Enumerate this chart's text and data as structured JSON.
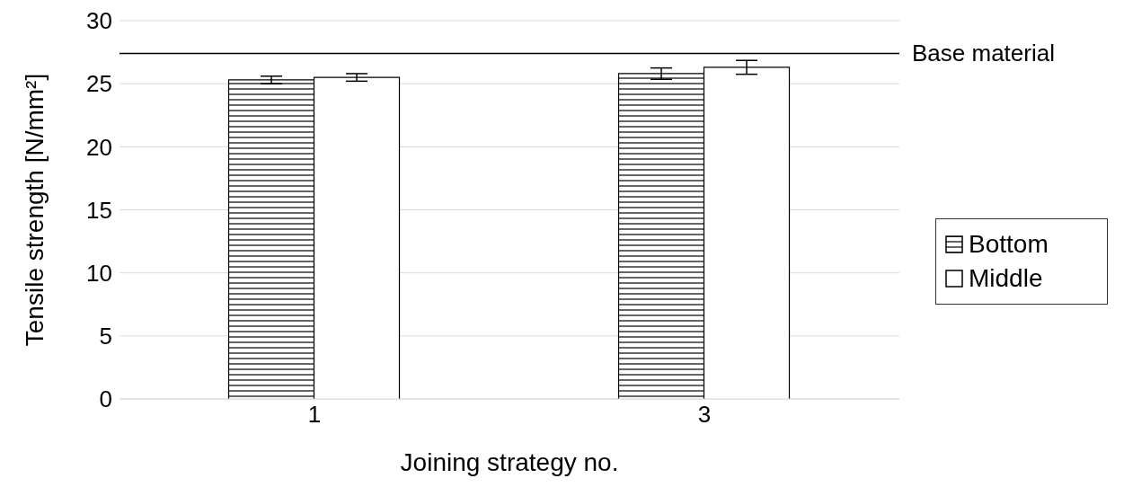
{
  "chart_data": {
    "type": "bar",
    "xlabel": "Joining strategy no.",
    "ylabel": "Tensile strength [N/mm²]",
    "categories": [
      "1",
      "3"
    ],
    "series": [
      {
        "name": "Bottom",
        "color": "#000000",
        "values": [
          25.3,
          25.8
        ],
        "errors": [
          0.3,
          0.45
        ]
      },
      {
        "name": "Middle",
        "color": "#ffffff",
        "values": [
          25.5,
          26.3
        ],
        "errors": [
          0.3,
          0.55
        ]
      }
    ],
    "ylim": [
      0,
      30
    ],
    "yticks": [
      0,
      5,
      10,
      15,
      20,
      25,
      30
    ],
    "grid": "y",
    "legend": "right",
    "ref_lines": [
      {
        "axis": "y",
        "value": 27.4,
        "label": "Base material",
        "color": "#000000"
      }
    ]
  }
}
